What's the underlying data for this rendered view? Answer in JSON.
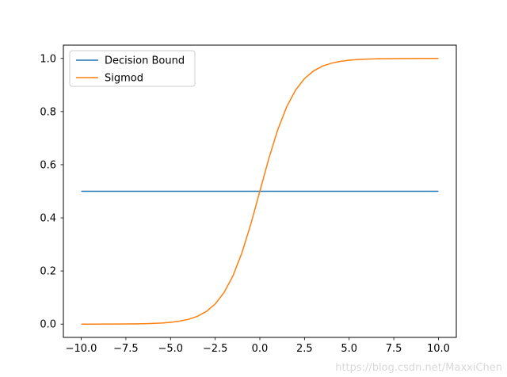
{
  "chart_data": {
    "type": "line",
    "title": "",
    "xlabel": "",
    "ylabel": "",
    "xlim": [
      -11.0,
      11.0
    ],
    "ylim": [
      -0.05,
      1.05
    ],
    "xticks": [
      -10.0,
      -7.5,
      -5.0,
      -2.5,
      0.0,
      2.5,
      5.0,
      7.5,
      10.0
    ],
    "xtick_labels": [
      "−10.0",
      "−7.5",
      "−5.0",
      "−2.5",
      "0.0",
      "2.5",
      "5.0",
      "7.5",
      "10.0"
    ],
    "yticks": [
      0.0,
      0.2,
      0.4,
      0.6,
      0.8,
      1.0
    ],
    "ytick_labels": [
      "0.0",
      "0.2",
      "0.4",
      "0.6",
      "0.8",
      "1.0"
    ],
    "grid": false,
    "legend_position": "upper-left",
    "series": [
      {
        "name": "Decision Bound",
        "color": "#1f77b4",
        "x": [
          -10,
          10
        ],
        "y": [
          0.5,
          0.5
        ]
      },
      {
        "name": "Sigmod",
        "color": "#ff7f0e",
        "x": [
          -10.0,
          -9.5,
          -9.0,
          -8.5,
          -8.0,
          -7.5,
          -7.0,
          -6.5,
          -6.0,
          -5.5,
          -5.0,
          -4.5,
          -4.0,
          -3.5,
          -3.0,
          -2.5,
          -2.0,
          -1.5,
          -1.0,
          -0.5,
          0.0,
          0.5,
          1.0,
          1.5,
          2.0,
          2.5,
          3.0,
          3.5,
          4.0,
          4.5,
          5.0,
          5.5,
          6.0,
          6.5,
          7.0,
          7.5,
          8.0,
          8.5,
          9.0,
          9.5,
          10.0
        ],
        "y": [
          0.0,
          0.0001,
          0.0001,
          0.0002,
          0.0003,
          0.0006,
          0.0009,
          0.0015,
          0.0025,
          0.0041,
          0.0067,
          0.011,
          0.018,
          0.0293,
          0.0474,
          0.0759,
          0.1192,
          0.1824,
          0.2689,
          0.3775,
          0.5,
          0.6225,
          0.7311,
          0.8176,
          0.8808,
          0.9241,
          0.9526,
          0.9707,
          0.982,
          0.989,
          0.9933,
          0.9959,
          0.9975,
          0.9985,
          0.9991,
          0.9994,
          0.9997,
          0.9998,
          0.9999,
          0.9999,
          1.0
        ]
      }
    ]
  },
  "watermark": "https://blog.csdn.net/MaxxiChen"
}
